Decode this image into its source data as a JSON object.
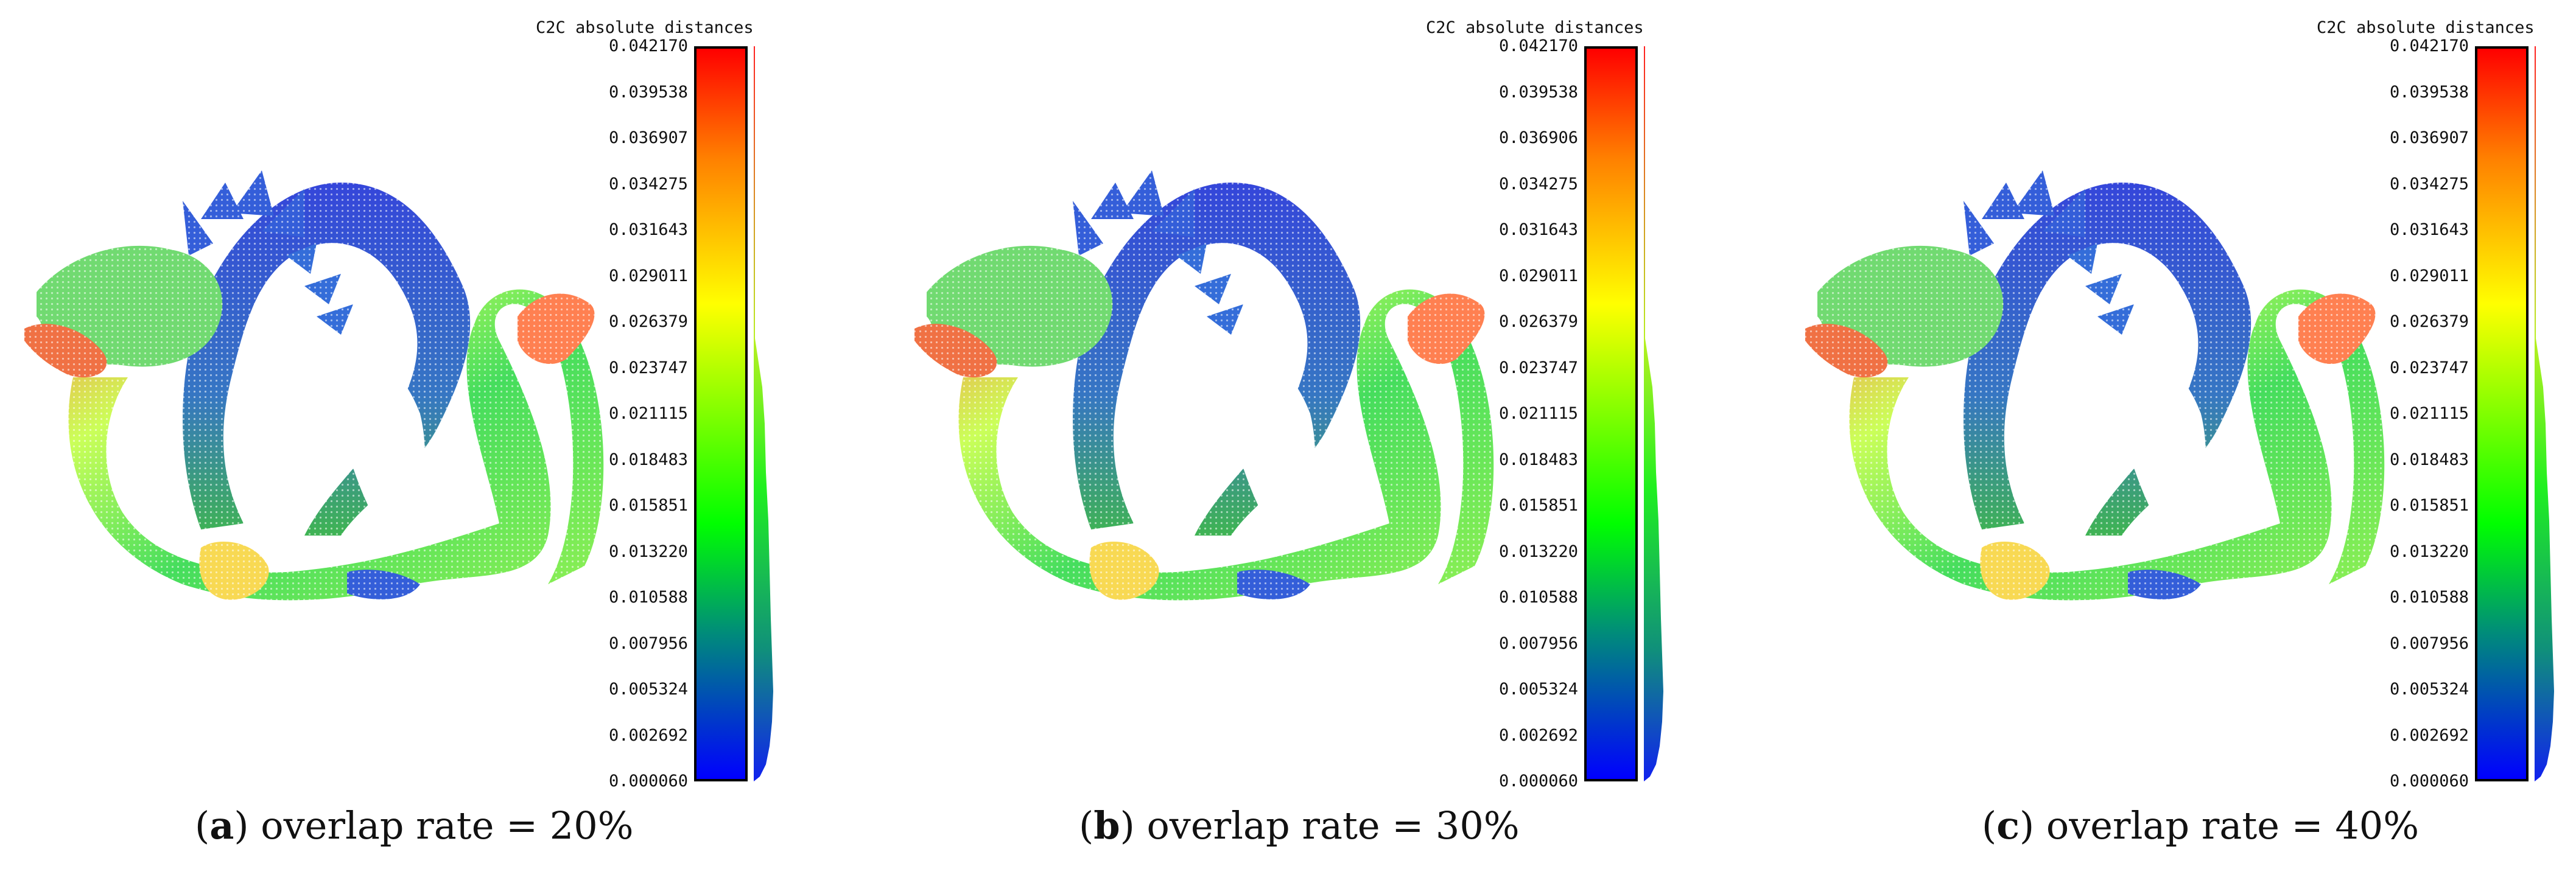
{
  "scalar_field_title": "C2C absolute distances",
  "panels": [
    {
      "label": "a",
      "caption_text": "overlap rate = 20%",
      "ticks": [
        "0.042170",
        "0.039538",
        "0.036907",
        "0.034275",
        "0.031643",
        "0.029011",
        "0.026379",
        "0.023747",
        "0.021115",
        "0.018483",
        "0.015851",
        "0.013220",
        "0.010588",
        "0.007956",
        "0.005324",
        "0.002692",
        "0.000060"
      ]
    },
    {
      "label": "b",
      "caption_text": "overlap rate = 30%",
      "ticks": [
        "0.042170",
        "0.039538",
        "0.036906",
        "0.034275",
        "0.031643",
        "0.029011",
        "0.026379",
        "0.023747",
        "0.021115",
        "0.018483",
        "0.015851",
        "0.013220",
        "0.010588",
        "0.007956",
        "0.005324",
        "0.002692",
        "0.000060"
      ]
    },
    {
      "label": "c",
      "caption_text": "overlap rate = 40%",
      "ticks": [
        "0.042170",
        "0.039538",
        "0.036907",
        "0.034275",
        "0.031643",
        "0.029011",
        "0.026379",
        "0.023747",
        "0.021115",
        "0.018483",
        "0.015851",
        "0.013220",
        "0.010588",
        "0.007956",
        "0.005324",
        "0.002692",
        "0.000060"
      ]
    }
  ],
  "colors": {
    "red": "#ff0000",
    "orange": "#ff8000",
    "yellow": "#ffff00",
    "green": "#00ff00",
    "teal": "#008c7a",
    "blue": "#0000ff"
  }
}
